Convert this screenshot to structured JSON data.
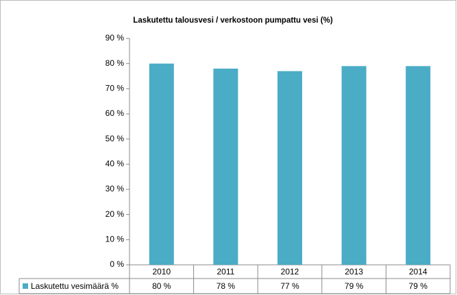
{
  "chart_data": {
    "type": "bar",
    "title": "Laskutettu talousvesi / verkostoon pumpattu vesi  (%)",
    "categories": [
      "2010",
      "2011",
      "2012",
      "2013",
      "2014"
    ],
    "series": [
      {
        "name": "Laskutettu vesimäärä %",
        "color": "#4bacc6",
        "values": [
          80,
          78,
          77,
          79,
          79
        ],
        "value_labels": [
          "80 %",
          "78 %",
          "77 %",
          "79 %",
          "79 %"
        ]
      }
    ],
    "ylim": [
      0,
      90
    ],
    "yticks": [
      {
        "value": 0,
        "label": "0 %"
      },
      {
        "value": 10,
        "label": "10 %"
      },
      {
        "value": 20,
        "label": "20 %"
      },
      {
        "value": 30,
        "label": "30 %"
      },
      {
        "value": 40,
        "label": "40 %"
      },
      {
        "value": 50,
        "label": "50 %"
      },
      {
        "value": 60,
        "label": "60 %"
      },
      {
        "value": 70,
        "label": "70 %"
      },
      {
        "value": 80,
        "label": "80 %"
      },
      {
        "value": 90,
        "label": "90 %"
      }
    ],
    "grid": false
  }
}
